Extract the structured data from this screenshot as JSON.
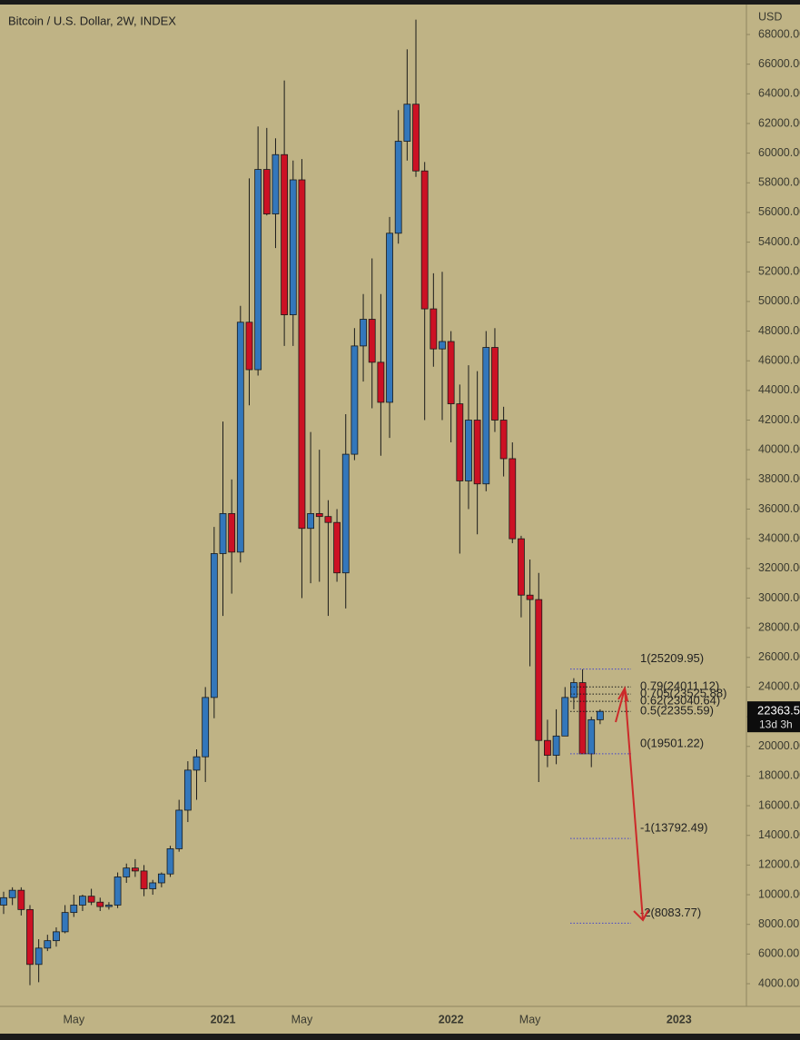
{
  "chart_data": {
    "type": "candlestick",
    "title": "Bitcoin / U.S. Dollar, 2W, INDEX",
    "y_unit": "USD",
    "background": "#bfb385",
    "up_color": "#3377bb",
    "down_color": "#cc1124",
    "categories": [
      null,
      null,
      null,
      null,
      null,
      null,
      null,
      null,
      "May",
      null,
      null,
      null,
      null,
      null,
      null,
      null,
      null,
      null,
      null,
      null,
      null,
      null,
      null,
      null,
      null,
      "2021",
      null,
      null,
      null,
      null,
      null,
      null,
      null,
      null,
      "May",
      null,
      null,
      null,
      null,
      null,
      null,
      null,
      null,
      null,
      null,
      null,
      null,
      null,
      null,
      null,
      null,
      "2022",
      null,
      null,
      null,
      null,
      null,
      null,
      null,
      null,
      "May",
      null,
      null,
      null,
      null,
      null,
      null,
      null,
      null,
      null,
      null,
      null,
      null,
      null,
      null,
      null,
      null,
      "2023",
      null,
      null,
      null,
      null,
      null,
      null,
      null
    ],
    "open": [
      9300,
      9800,
      10300,
      9000,
      5300,
      6400,
      6900,
      7500,
      8800,
      9300,
      9900,
      9500,
      9200,
      9300,
      11200,
      11800,
      11600,
      10400,
      10800,
      11400,
      13100,
      15700,
      18400,
      19300,
      23300,
      33000,
      35700,
      33100,
      48600,
      45400,
      58900,
      55900,
      59900,
      49100,
      58200,
      34700,
      35700,
      35500,
      35100,
      31700,
      39700,
      47000,
      48800,
      45900,
      43200,
      54600,
      60800,
      63300,
      58800,
      49500,
      46800,
      47300,
      43100,
      37900,
      42000,
      37700,
      46900,
      42000,
      39400,
      34000,
      30200,
      29900,
      20400,
      19400,
      20700,
      23300,
      24300,
      19500,
      21800,
      null,
      null,
      null,
      null,
      null,
      null,
      null,
      null,
      null,
      null,
      null,
      null,
      null,
      null,
      null,
      null
    ],
    "high": [
      10200,
      10500,
      10500,
      9300,
      7000,
      7300,
      7800,
      9300,
      10000,
      10000,
      10400,
      9800,
      9500,
      11500,
      12100,
      12400,
      12000,
      11000,
      11500,
      13300,
      16400,
      19000,
      19800,
      24000,
      34800,
      41900,
      38000,
      49700,
      58300,
      61800,
      61700,
      61000,
      64900,
      59500,
      59600,
      41200,
      40000,
      36600,
      36000,
      42400,
      48200,
      50500,
      52900,
      50500,
      55700,
      62900,
      67000,
      69000,
      59400,
      51900,
      52000,
      48000,
      44400,
      45700,
      45300,
      48000,
      48200,
      42900,
      40500,
      34200,
      32600,
      31700,
      21800,
      22500,
      24000,
      24600,
      25200,
      22000,
      22500,
      null,
      null,
      null,
      null,
      null,
      null,
      null,
      null,
      null,
      null,
      null,
      null,
      null,
      null,
      null,
      null
    ],
    "low": [
      8700,
      9300,
      8600,
      3900,
      4100,
      6200,
      6500,
      7400,
      8500,
      8900,
      9300,
      8900,
      9000,
      9100,
      10800,
      11200,
      9900,
      10000,
      10500,
      11200,
      12900,
      14900,
      16400,
      17600,
      21900,
      28800,
      30300,
      32400,
      43000,
      45000,
      55800,
      53600,
      47000,
      47000,
      30000,
      31000,
      31100,
      28800,
      31100,
      29300,
      39300,
      44600,
      42800,
      39600,
      40800,
      53900,
      59500,
      58400,
      42000,
      45600,
      42000,
      40500,
      33000,
      36000,
      34300,
      37200,
      41200,
      38200,
      33700,
      28700,
      25400,
      17600,
      18600,
      18800,
      20700,
      22500,
      19500,
      18600,
      21500,
      null,
      null,
      null,
      null,
      null,
      null,
      null,
      null,
      null,
      null,
      null,
      null,
      null,
      null,
      null,
      null
    ],
    "close": [
      9800,
      10300,
      9000,
      5300,
      6400,
      6900,
      7500,
      8800,
      9300,
      9900,
      9500,
      9200,
      9300,
      11200,
      11800,
      11600,
      10400,
      10800,
      11400,
      13100,
      15700,
      18400,
      19300,
      23300,
      33000,
      35700,
      33100,
      48600,
      45400,
      58900,
      55900,
      59900,
      49100,
      58200,
      34700,
      35700,
      35500,
      35100,
      31700,
      39700,
      47000,
      48800,
      45900,
      43200,
      54600,
      60800,
      63300,
      58800,
      49500,
      46800,
      47300,
      43100,
      37900,
      42000,
      37700,
      46900,
      42000,
      39400,
      34000,
      30200,
      29900,
      20400,
      19400,
      20700,
      23300,
      24300,
      19500,
      21800,
      22363.5,
      null,
      null,
      null,
      null,
      null,
      null,
      null,
      null,
      null,
      null,
      null,
      null,
      null,
      null,
      null,
      null
    ],
    "ylim": [
      2470,
      70020
    ],
    "yticks": [
      {
        "value": 4000,
        "label": "4000.00"
      },
      {
        "value": 6000,
        "label": "6000.00"
      },
      {
        "value": 8000,
        "label": "8000.00"
      },
      {
        "value": 10000,
        "label": "10000.00"
      },
      {
        "value": 12000,
        "label": "12000.00"
      },
      {
        "value": 14000,
        "label": "14000.00"
      },
      {
        "value": 16000,
        "label": "16000.00"
      },
      {
        "value": 18000,
        "label": "18000.00"
      },
      {
        "value": 20000,
        "label": "20000.00"
      },
      {
        "value": 22000,
        "label": "22000.00"
      },
      {
        "value": 24000,
        "label": "24000.00"
      },
      {
        "value": 26000,
        "label": "26000.00"
      },
      {
        "value": 28000,
        "label": "28000.00"
      },
      {
        "value": 30000,
        "label": "30000.00"
      },
      {
        "value": 32000,
        "label": "32000.00"
      },
      {
        "value": 34000,
        "label": "34000.00"
      },
      {
        "value": 36000,
        "label": "36000.00"
      },
      {
        "value": 38000,
        "label": "38000.00"
      },
      {
        "value": 40000,
        "label": "40000.00"
      },
      {
        "value": 42000,
        "label": "42000.00"
      },
      {
        "value": 44000,
        "label": "44000.00"
      },
      {
        "value": 46000,
        "label": "46000.00"
      },
      {
        "value": 48000,
        "label": "48000.00"
      },
      {
        "value": 50000,
        "label": "50000.00"
      },
      {
        "value": 52000,
        "label": "52000.00"
      },
      {
        "value": 54000,
        "label": "54000.00"
      },
      {
        "value": 56000,
        "label": "56000.00"
      },
      {
        "value": 58000,
        "label": "58000.00"
      },
      {
        "value": 60000,
        "label": "60000.00"
      },
      {
        "value": 62000,
        "label": "62000.00"
      },
      {
        "value": 64000,
        "label": "64000.00"
      },
      {
        "value": 66000,
        "label": "66000.00"
      },
      {
        "value": 68000,
        "label": "68000.00"
      }
    ],
    "fib_levels": [
      {
        "value": 25209.95,
        "label": "1(25209.95)",
        "color": "#4444cc"
      },
      {
        "value": 24011.12,
        "label": "0.79(24011.12)",
        "color": "#1a1a1a"
      },
      {
        "value": 23525.88,
        "label": "0.705(23525.88)",
        "color": "#1a1a1a"
      },
      {
        "value": 23040.64,
        "label": "0.62(23040.64)",
        "color": "#1a1a1a"
      },
      {
        "value": 22355.59,
        "label": "0.5(22355.59)",
        "color": "#1a1a1a"
      },
      {
        "value": 19501.22,
        "label": "0(19501.22)",
        "color": "#4444cc"
      },
      {
        "value": 13792.49,
        "label": "-1(13792.49)",
        "color": "#4444cc"
      },
      {
        "value": 8083.77,
        "label": "-2(8083.77)",
        "color": "#4444cc"
      }
    ],
    "last_price": {
      "value": 22363.5,
      "label": "22363.5",
      "countdown": "13d 3h"
    }
  }
}
